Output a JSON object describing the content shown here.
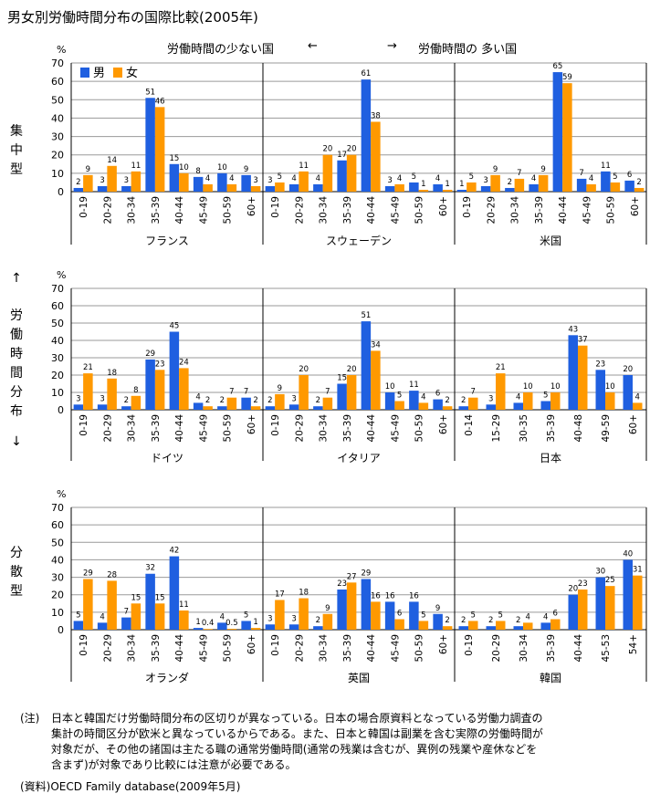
{
  "title": "男女別労働時間分布の国際比較(2005年)",
  "header": {
    "left_label": "労働時間の少ない国",
    "left_arrow": "←",
    "right_arrow": "→",
    "right_label": "労働時間の 多い国"
  },
  "side_labels": {
    "concentrated": [
      "集",
      "中",
      "型"
    ],
    "up_arrow": "↑",
    "distribution": [
      "労",
      "働",
      "時",
      "間",
      "分",
      "布"
    ],
    "down_arrow": "↓",
    "dispersed": [
      "分",
      "散",
      "型"
    ]
  },
  "legend": {
    "male": "男",
    "female": "女"
  },
  "colors": {
    "male": "#1f5fe0",
    "female": "#ff9900"
  },
  "note_label": "(注)",
  "note_lines": [
    "日本と韓国だけ労働時間分布の区切りが異なっている。日本の場合原資料となっている労働力調査の",
    "集計の時間区分が欧米と異なっているからである。また、日本と韓国は副業を含む実際の労働時間が",
    "対象だが、その他の諸国は主たる職の通常労働時間(通常の残業は含むが、異例の残業や産休などを",
    "含まず)が対象であり比較には注意が必要である。"
  ],
  "source": "(資料)OECD Family database(2009年5月)",
  "chart_data": [
    {
      "type": "bar",
      "unit": "%",
      "ylim": [
        0,
        70
      ],
      "yticks": [
        0,
        10,
        20,
        30,
        40,
        50,
        60,
        70
      ],
      "grid": true,
      "panels": [
        {
          "country": "フランス",
          "categories": [
            "0-19",
            "20-29",
            "30-34",
            "35-39",
            "40-44",
            "45-49",
            "50-59",
            "60+"
          ],
          "series": [
            {
              "name": "男",
              "values": [
                2,
                3,
                3,
                51,
                15,
                8,
                10,
                9
              ]
            },
            {
              "name": "女",
              "values": [
                9,
                14,
                11,
                46,
                10,
                4,
                4,
                3
              ]
            }
          ]
        },
        {
          "country": "スウェーデン",
          "categories": [
            "0-19",
            "20-29",
            "30-34",
            "35-39",
            "40-44",
            "45-49",
            "50-59",
            "60+"
          ],
          "series": [
            {
              "name": "男",
              "values": [
                3,
                4,
                4,
                17,
                61,
                3,
                5,
                4
              ]
            },
            {
              "name": "女",
              "values": [
                5,
                11,
                20,
                20,
                38,
                4,
                1,
                1
              ]
            }
          ]
        },
        {
          "country": "米国",
          "categories": [
            "0-19",
            "20-29",
            "30-34",
            "35-39",
            "40-44",
            "45-49",
            "50-59",
            "60+"
          ],
          "series": [
            {
              "name": "男",
              "values": [
                1,
                3,
                2,
                4,
                65,
                7,
                11,
                6
              ]
            },
            {
              "name": "女",
              "values": [
                5,
                9,
                7,
                9,
                59,
                4,
                5,
                2
              ]
            }
          ]
        }
      ]
    },
    {
      "type": "bar",
      "unit": "%",
      "ylim": [
        0,
        70
      ],
      "yticks": [
        0,
        10,
        20,
        30,
        40,
        50,
        60,
        70
      ],
      "grid": true,
      "panels": [
        {
          "country": "ドイツ",
          "categories": [
            "0-19",
            "20-29",
            "30-34",
            "35-39",
            "40-44",
            "45-49",
            "50-59",
            "60+"
          ],
          "series": [
            {
              "name": "男",
              "values": [
                3,
                3,
                2,
                29,
                45,
                4,
                2,
                7
              ]
            },
            {
              "name": "女",
              "values": [
                21,
                18,
                8,
                23,
                24,
                2,
                7,
                2
              ]
            }
          ]
        },
        {
          "country": "イタリア",
          "categories": [
            "0-19",
            "20-29",
            "30-34",
            "35-39",
            "40-44",
            "45-49",
            "50-59",
            "60+"
          ],
          "series": [
            {
              "name": "男",
              "values": [
                2,
                3,
                2,
                15,
                51,
                10,
                11,
                6
              ]
            },
            {
              "name": "女",
              "values": [
                9,
                20,
                7,
                20,
                34,
                5,
                4,
                2
              ]
            }
          ]
        },
        {
          "country": "日本",
          "categories": [
            "0-14",
            "15-29",
            "30-35",
            "35-39",
            "40-48",
            "49-59",
            "60+"
          ],
          "series": [
            {
              "name": "男",
              "values": [
                2,
                3,
                4,
                5,
                43,
                23,
                20
              ]
            },
            {
              "name": "女",
              "values": [
                7,
                21,
                10,
                10,
                37,
                10,
                4
              ]
            }
          ]
        }
      ]
    },
    {
      "type": "bar",
      "unit": "%",
      "ylim": [
        0,
        70
      ],
      "yticks": [
        0,
        10,
        20,
        30,
        40,
        50,
        60,
        70
      ],
      "grid": true,
      "panels": [
        {
          "country": "オランダ",
          "categories": [
            "0-19",
            "20-29",
            "30-34",
            "35-39",
            "40-44",
            "45-49",
            "50-59",
            "60+"
          ],
          "series": [
            {
              "name": "男",
              "values": [
                5,
                4,
                7,
                32,
                42,
                1,
                4,
                5
              ]
            },
            {
              "name": "女",
              "values": [
                29,
                28,
                15,
                15,
                11,
                0.4,
                0.5,
                1
              ]
            }
          ]
        },
        {
          "country": "英国",
          "categories": [
            "0-19",
            "20-29",
            "30-34",
            "35-39",
            "40-44",
            "45-49",
            "50-59",
            "60+"
          ],
          "series": [
            {
              "name": "男",
              "values": [
                3,
                3,
                2,
                23,
                29,
                16,
                16,
                9
              ]
            },
            {
              "name": "女",
              "values": [
                17,
                18,
                9,
                27,
                16,
                6,
                5,
                2
              ]
            }
          ]
        },
        {
          "country": "韓国",
          "categories": [
            "0-19",
            "20-29",
            "30-34",
            "35-39",
            "40-44",
            "45-53",
            "54+"
          ],
          "series": [
            {
              "name": "男",
              "values": [
                2,
                2,
                2,
                4,
                20,
                30,
                40
              ]
            },
            {
              "name": "女",
              "values": [
                5,
                5,
                4,
                6,
                23,
                25,
                31
              ]
            }
          ]
        }
      ]
    }
  ]
}
